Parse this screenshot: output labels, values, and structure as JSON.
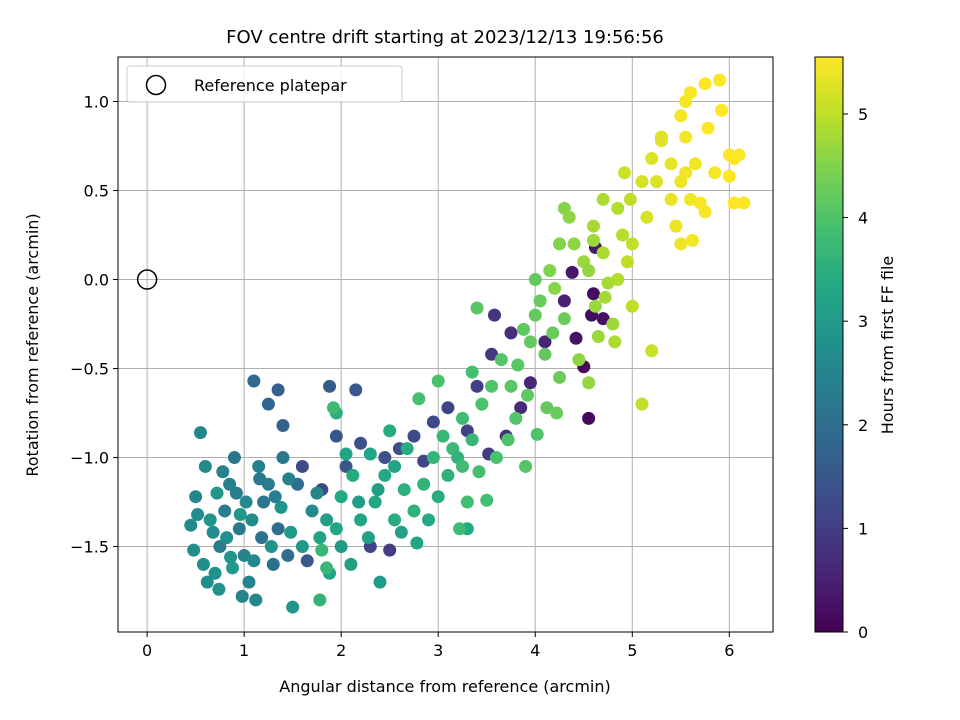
{
  "chart_data": {
    "type": "scatter",
    "title": "FOV centre drift starting at 2023/12/13 19:56:56",
    "xlabel": "Angular distance from reference (arcmin)",
    "ylabel": "Rotation from reference (arcmin)",
    "xlim": [
      -0.3,
      6.45
    ],
    "ylim": [
      -1.98,
      1.25
    ],
    "xticks": [
      0,
      1,
      2,
      3,
      4,
      5,
      6
    ],
    "yticks": [
      -1.5,
      -1.0,
      -0.5,
      0.0,
      0.5,
      1.0
    ],
    "xtick_labels": [
      "0",
      "1",
      "2",
      "3",
      "4",
      "5",
      "6"
    ],
    "ytick_labels": [
      "−1.5",
      "−1.0",
      "−0.5",
      "0.0",
      "0.5",
      "1.0"
    ],
    "grid": true,
    "legend": {
      "location": "upper-left",
      "entries": [
        "Reference platepar"
      ]
    },
    "reference_point": {
      "x": 0.0,
      "y": 0.0
    },
    "colorbar": {
      "label": "Hours from first FF file",
      "colormap": "viridis",
      "min": 0,
      "max": 5.55,
      "ticks": [
        0,
        1,
        2,
        3,
        4,
        5
      ],
      "tick_labels": [
        "0",
        "1",
        "2",
        "3",
        "4",
        "5"
      ]
    },
    "points": [
      {
        "x": 4.55,
        "y": -0.78,
        "c": 0.1
      },
      {
        "x": 4.5,
        "y": -0.49,
        "c": 0.15
      },
      {
        "x": 4.58,
        "y": -0.2,
        "c": 0.2
      },
      {
        "x": 4.7,
        "y": -0.22,
        "c": 0.25
      },
      {
        "x": 4.42,
        "y": -0.33,
        "c": 0.3
      },
      {
        "x": 4.6,
        "y": -0.08,
        "c": 0.2
      },
      {
        "x": 4.38,
        "y": 0.04,
        "c": 0.35
      },
      {
        "x": 4.62,
        "y": 0.18,
        "c": 0.4
      },
      {
        "x": 4.3,
        "y": -0.12,
        "c": 0.5
      },
      {
        "x": 4.1,
        "y": -0.35,
        "c": 0.55
      },
      {
        "x": 3.95,
        "y": -0.58,
        "c": 0.6
      },
      {
        "x": 3.85,
        "y": -0.72,
        "c": 0.7
      },
      {
        "x": 3.7,
        "y": -0.88,
        "c": 0.8
      },
      {
        "x": 3.55,
        "y": -0.42,
        "c": 0.9
      },
      {
        "x": 3.4,
        "y": -0.6,
        "c": 1.0
      },
      {
        "x": 3.3,
        "y": -0.85,
        "c": 1.05
      },
      {
        "x": 3.1,
        "y": -0.72,
        "c": 1.1
      },
      {
        "x": 2.95,
        "y": -0.8,
        "c": 1.2
      },
      {
        "x": 2.75,
        "y": -0.88,
        "c": 1.25
      },
      {
        "x": 2.6,
        "y": -0.95,
        "c": 1.3
      },
      {
        "x": 2.45,
        "y": -1.0,
        "c": 1.35
      },
      {
        "x": 2.2,
        "y": -0.92,
        "c": 1.4
      },
      {
        "x": 2.05,
        "y": -1.05,
        "c": 1.45
      },
      {
        "x": 1.95,
        "y": -0.88,
        "c": 1.5
      },
      {
        "x": 2.15,
        "y": -0.62,
        "c": 1.55
      },
      {
        "x": 1.88,
        "y": -0.6,
        "c": 1.6
      },
      {
        "x": 2.3,
        "y": -1.5,
        "c": 1.1
      },
      {
        "x": 2.5,
        "y": -1.52,
        "c": 1.0
      },
      {
        "x": 1.8,
        "y": -1.18,
        "c": 1.2
      },
      {
        "x": 1.6,
        "y": -1.05,
        "c": 1.25
      },
      {
        "x": 1.65,
        "y": -1.58,
        "c": 1.5
      },
      {
        "x": 1.35,
        "y": -0.62,
        "c": 1.7
      },
      {
        "x": 1.25,
        "y": -0.7,
        "c": 1.8
      },
      {
        "x": 1.1,
        "y": -0.57,
        "c": 1.9
      },
      {
        "x": 1.4,
        "y": -0.82,
        "c": 1.75
      },
      {
        "x": 3.58,
        "y": -0.2,
        "c": 0.85
      },
      {
        "x": 3.75,
        "y": -0.3,
        "c": 0.75
      },
      {
        "x": 3.52,
        "y": -0.98,
        "c": 0.95
      },
      {
        "x": 2.85,
        "y": -1.02,
        "c": 1.15
      },
      {
        "x": 0.5,
        "y": -1.22,
        "c": 2.5
      },
      {
        "x": 0.55,
        "y": -0.86,
        "c": 2.55
      },
      {
        "x": 0.6,
        "y": -1.05,
        "c": 2.6
      },
      {
        "x": 0.45,
        "y": -1.38,
        "c": 2.65
      },
      {
        "x": 0.48,
        "y": -1.52,
        "c": 2.7
      },
      {
        "x": 0.62,
        "y": -1.7,
        "c": 2.75
      },
      {
        "x": 0.7,
        "y": -1.65,
        "c": 2.8
      },
      {
        "x": 0.75,
        "y": -1.5,
        "c": 2.3
      },
      {
        "x": 0.8,
        "y": -1.3,
        "c": 2.35
      },
      {
        "x": 0.85,
        "y": -1.15,
        "c": 2.4
      },
      {
        "x": 0.9,
        "y": -1.0,
        "c": 2.2
      },
      {
        "x": 0.95,
        "y": -1.4,
        "c": 2.25
      },
      {
        "x": 1.0,
        "y": -1.55,
        "c": 2.45
      },
      {
        "x": 1.05,
        "y": -1.7,
        "c": 2.5
      },
      {
        "x": 1.12,
        "y": -1.8,
        "c": 2.55
      },
      {
        "x": 1.18,
        "y": -1.45,
        "c": 2.1
      },
      {
        "x": 1.2,
        "y": -1.25,
        "c": 2.15
      },
      {
        "x": 1.3,
        "y": -1.6,
        "c": 2.05
      },
      {
        "x": 1.35,
        "y": -1.4,
        "c": 2.0
      },
      {
        "x": 1.45,
        "y": -1.55,
        "c": 1.95
      },
      {
        "x": 1.5,
        "y": -1.84,
        "c": 2.9
      },
      {
        "x": 1.55,
        "y": -1.15,
        "c": 2.05
      },
      {
        "x": 1.7,
        "y": -1.3,
        "c": 2.6
      },
      {
        "x": 0.65,
        "y": -1.35,
        "c": 2.85
      },
      {
        "x": 0.72,
        "y": -1.2,
        "c": 2.9
      },
      {
        "x": 0.88,
        "y": -1.62,
        "c": 2.95
      },
      {
        "x": 0.98,
        "y": -1.78,
        "c": 2.5
      },
      {
        "x": 1.08,
        "y": -1.35,
        "c": 2.65
      },
      {
        "x": 1.15,
        "y": -1.05,
        "c": 2.4
      },
      {
        "x": 1.25,
        "y": -1.15,
        "c": 2.3
      },
      {
        "x": 1.4,
        "y": -1.0,
        "c": 2.2
      },
      {
        "x": 0.58,
        "y": -1.6,
        "c": 2.7
      },
      {
        "x": 0.82,
        "y": -1.45,
        "c": 2.75
      },
      {
        "x": 1.02,
        "y": -1.25,
        "c": 2.6
      },
      {
        "x": 1.28,
        "y": -1.5,
        "c": 2.8
      },
      {
        "x": 1.38,
        "y": -1.28,
        "c": 2.85
      },
      {
        "x": 1.48,
        "y": -1.42,
        "c": 3.0
      },
      {
        "x": 1.6,
        "y": -1.5,
        "c": 2.95
      },
      {
        "x": 1.75,
        "y": -1.2,
        "c": 2.55
      },
      {
        "x": 0.78,
        "y": -1.08,
        "c": 2.45
      },
      {
        "x": 0.92,
        "y": -1.2,
        "c": 2.35
      },
      {
        "x": 1.1,
        "y": -1.58,
        "c": 2.6
      },
      {
        "x": 0.68,
        "y": -1.42,
        "c": 2.65
      },
      {
        "x": 0.52,
        "y": -1.32,
        "c": 2.7
      },
      {
        "x": 0.74,
        "y": -1.74,
        "c": 2.8
      },
      {
        "x": 0.86,
        "y": -1.56,
        "c": 2.85
      },
      {
        "x": 0.96,
        "y": -1.32,
        "c": 2.9
      },
      {
        "x": 1.16,
        "y": -1.12,
        "c": 2.25
      },
      {
        "x": 1.32,
        "y": -1.22,
        "c": 2.35
      },
      {
        "x": 1.46,
        "y": -1.12,
        "c": 2.45
      },
      {
        "x": 1.88,
        "y": -1.65,
        "c": 3.2
      },
      {
        "x": 1.95,
        "y": -1.4,
        "c": 3.3
      },
      {
        "x": 2.0,
        "y": -1.22,
        "c": 3.35
      },
      {
        "x": 2.12,
        "y": -1.1,
        "c": 3.4
      },
      {
        "x": 2.2,
        "y": -1.35,
        "c": 3.25
      },
      {
        "x": 2.35,
        "y": -1.25,
        "c": 3.3
      },
      {
        "x": 2.45,
        "y": -1.1,
        "c": 3.35
      },
      {
        "x": 2.55,
        "y": -1.35,
        "c": 3.45
      },
      {
        "x": 2.65,
        "y": -1.18,
        "c": 3.5
      },
      {
        "x": 2.75,
        "y": -1.3,
        "c": 3.55
      },
      {
        "x": 2.85,
        "y": -1.15,
        "c": 3.6
      },
      {
        "x": 2.95,
        "y": -1.0,
        "c": 3.65
      },
      {
        "x": 3.05,
        "y": -0.88,
        "c": 3.7
      },
      {
        "x": 3.15,
        "y": -0.95,
        "c": 3.75
      },
      {
        "x": 3.25,
        "y": -0.78,
        "c": 3.8
      },
      {
        "x": 2.1,
        "y": -1.6,
        "c": 3.1
      },
      {
        "x": 2.28,
        "y": -1.45,
        "c": 3.15
      },
      {
        "x": 2.4,
        "y": -1.7,
        "c": 3.05
      },
      {
        "x": 2.55,
        "y": -1.05,
        "c": 3.2
      },
      {
        "x": 2.05,
        "y": -0.98,
        "c": 3.25
      },
      {
        "x": 2.3,
        "y": -0.98,
        "c": 3.3
      },
      {
        "x": 2.5,
        "y": -0.85,
        "c": 3.4
      },
      {
        "x": 2.68,
        "y": -0.95,
        "c": 3.45
      },
      {
        "x": 1.95,
        "y": -0.75,
        "c": 3.5
      },
      {
        "x": 2.0,
        "y": -1.5,
        "c": 3.0
      },
      {
        "x": 2.62,
        "y": -1.42,
        "c": 3.15
      },
      {
        "x": 2.78,
        "y": -1.48,
        "c": 3.25
      },
      {
        "x": 2.9,
        "y": -1.35,
        "c": 3.35
      },
      {
        "x": 3.0,
        "y": -1.22,
        "c": 3.45
      },
      {
        "x": 3.1,
        "y": -1.1,
        "c": 3.55
      },
      {
        "x": 3.2,
        "y": -1.0,
        "c": 3.6
      },
      {
        "x": 3.3,
        "y": -1.4,
        "c": 3.35
      },
      {
        "x": 3.35,
        "y": -0.9,
        "c": 3.7
      },
      {
        "x": 2.18,
        "y": -1.25,
        "c": 3.05
      },
      {
        "x": 2.38,
        "y": -1.18,
        "c": 3.1
      },
      {
        "x": 1.85,
        "y": -1.35,
        "c": 3.1
      },
      {
        "x": 1.78,
        "y": -1.45,
        "c": 3.2
      },
      {
        "x": 3.35,
        "y": -0.52,
        "c": 3.9
      },
      {
        "x": 3.45,
        "y": -0.7,
        "c": 3.95
      },
      {
        "x": 3.55,
        "y": -0.6,
        "c": 4.0
      },
      {
        "x": 3.65,
        "y": -0.45,
        "c": 4.05
      },
      {
        "x": 3.75,
        "y": -0.6,
        "c": 4.1
      },
      {
        "x": 3.82,
        "y": -0.48,
        "c": 4.1
      },
      {
        "x": 3.88,
        "y": -0.28,
        "c": 4.15
      },
      {
        "x": 3.95,
        "y": -0.35,
        "c": 4.2
      },
      {
        "x": 4.0,
        "y": -0.2,
        "c": 4.2
      },
      {
        "x": 4.05,
        "y": -0.12,
        "c": 4.25
      },
      {
        "x": 4.1,
        "y": -0.42,
        "c": 4.2
      },
      {
        "x": 4.18,
        "y": -0.3,
        "c": 4.25
      },
      {
        "x": 4.25,
        "y": -0.55,
        "c": 4.3
      },
      {
        "x": 4.3,
        "y": -0.22,
        "c": 4.3
      },
      {
        "x": 4.0,
        "y": 0.0,
        "c": 4.2
      },
      {
        "x": 3.92,
        "y": -0.65,
        "c": 4.15
      },
      {
        "x": 3.8,
        "y": -0.78,
        "c": 4.05
      },
      {
        "x": 3.72,
        "y": -0.9,
        "c": 4.0
      },
      {
        "x": 3.6,
        "y": -1.0,
        "c": 3.95
      },
      {
        "x": 3.4,
        "y": -0.16,
        "c": 4.1
      },
      {
        "x": 3.9,
        "y": -1.05,
        "c": 4.05
      },
      {
        "x": 4.02,
        "y": -0.87,
        "c": 4.0
      },
      {
        "x": 4.12,
        "y": -0.72,
        "c": 4.2
      },
      {
        "x": 4.22,
        "y": -0.75,
        "c": 4.25
      },
      {
        "x": 3.3,
        "y": -1.25,
        "c": 3.85
      },
      {
        "x": 3.5,
        "y": -1.24,
        "c": 3.85
      },
      {
        "x": 3.42,
        "y": -1.08,
        "c": 3.9
      },
      {
        "x": 3.25,
        "y": -1.05,
        "c": 3.8
      },
      {
        "x": 2.8,
        "y": -0.67,
        "c": 3.9
      },
      {
        "x": 3.0,
        "y": -0.57,
        "c": 3.95
      },
      {
        "x": 1.92,
        "y": -0.72,
        "c": 3.8
      },
      {
        "x": 1.8,
        "y": -1.52,
        "c": 3.7
      },
      {
        "x": 1.78,
        "y": -1.8,
        "c": 3.6
      },
      {
        "x": 1.85,
        "y": -1.62,
        "c": 3.7
      },
      {
        "x": 3.22,
        "y": -1.4,
        "c": 3.8
      },
      {
        "x": 4.25,
        "y": 0.2,
        "c": 4.5
      },
      {
        "x": 4.3,
        "y": 0.4,
        "c": 4.55
      },
      {
        "x": 4.4,
        "y": 0.2,
        "c": 4.6
      },
      {
        "x": 4.5,
        "y": 0.1,
        "c": 4.7
      },
      {
        "x": 4.6,
        "y": 0.3,
        "c": 4.8
      },
      {
        "x": 4.7,
        "y": 0.15,
        "c": 4.85
      },
      {
        "x": 4.75,
        "y": -0.02,
        "c": 4.8
      },
      {
        "x": 4.8,
        "y": -0.25,
        "c": 4.75
      },
      {
        "x": 4.65,
        "y": -0.32,
        "c": 4.7
      },
      {
        "x": 4.55,
        "y": -0.58,
        "c": 4.65
      },
      {
        "x": 4.45,
        "y": -0.45,
        "c": 4.6
      },
      {
        "x": 4.85,
        "y": 0.4,
        "c": 4.9
      },
      {
        "x": 4.9,
        "y": 0.25,
        "c": 4.95
      },
      {
        "x": 4.95,
        "y": 0.1,
        "c": 5.0
      },
      {
        "x": 5.0,
        "y": 0.2,
        "c": 5.0
      },
      {
        "x": 4.98,
        "y": 0.45,
        "c": 5.0
      },
      {
        "x": 4.92,
        "y": 0.6,
        "c": 5.1
      },
      {
        "x": 5.1,
        "y": -0.7,
        "c": 5.0
      },
      {
        "x": 5.2,
        "y": -0.4,
        "c": 5.1
      },
      {
        "x": 5.0,
        "y": -0.15,
        "c": 5.0
      },
      {
        "x": 4.85,
        "y": 0.0,
        "c": 4.9
      },
      {
        "x": 4.7,
        "y": 0.45,
        "c": 4.85
      },
      {
        "x": 4.6,
        "y": 0.22,
        "c": 4.75
      },
      {
        "x": 4.2,
        "y": -0.05,
        "c": 4.55
      },
      {
        "x": 4.15,
        "y": 0.05,
        "c": 4.5
      },
      {
        "x": 4.35,
        "y": 0.35,
        "c": 4.6
      },
      {
        "x": 4.55,
        "y": 0.05,
        "c": 4.65
      },
      {
        "x": 4.72,
        "y": -0.1,
        "c": 4.8
      },
      {
        "x": 4.82,
        "y": -0.35,
        "c": 4.85
      },
      {
        "x": 4.62,
        "y": -0.15,
        "c": 4.7
      },
      {
        "x": 5.1,
        "y": 0.55,
        "c": 5.2
      },
      {
        "x": 5.2,
        "y": 0.68,
        "c": 5.25
      },
      {
        "x": 5.3,
        "y": 0.78,
        "c": 5.3
      },
      {
        "x": 5.4,
        "y": 0.65,
        "c": 5.35
      },
      {
        "x": 5.5,
        "y": 0.55,
        "c": 5.4
      },
      {
        "x": 5.6,
        "y": 0.45,
        "c": 5.45
      },
      {
        "x": 5.55,
        "y": 0.8,
        "c": 5.45
      },
      {
        "x": 5.5,
        "y": 0.92,
        "c": 5.5
      },
      {
        "x": 5.55,
        "y": 1.0,
        "c": 5.5
      },
      {
        "x": 5.6,
        "y": 1.05,
        "c": 5.5
      },
      {
        "x": 5.75,
        "y": 1.1,
        "c": 5.55
      },
      {
        "x": 5.9,
        "y": 1.12,
        "c": 5.55
      },
      {
        "x": 5.92,
        "y": 0.95,
        "c": 5.55
      },
      {
        "x": 5.78,
        "y": 0.85,
        "c": 5.55
      },
      {
        "x": 6.0,
        "y": 0.7,
        "c": 5.55
      },
      {
        "x": 6.05,
        "y": 0.68,
        "c": 5.55
      },
      {
        "x": 6.1,
        "y": 0.7,
        "c": 5.55
      },
      {
        "x": 6.0,
        "y": 0.58,
        "c": 5.55
      },
      {
        "x": 6.05,
        "y": 0.43,
        "c": 5.55
      },
      {
        "x": 6.15,
        "y": 0.43,
        "c": 5.55
      },
      {
        "x": 5.85,
        "y": 0.6,
        "c": 5.5
      },
      {
        "x": 5.75,
        "y": 0.38,
        "c": 5.5
      },
      {
        "x": 5.62,
        "y": 0.22,
        "c": 5.45
      },
      {
        "x": 5.5,
        "y": 0.2,
        "c": 5.4
      },
      {
        "x": 5.4,
        "y": 0.45,
        "c": 5.35
      },
      {
        "x": 5.3,
        "y": 0.8,
        "c": 5.3
      },
      {
        "x": 5.25,
        "y": 0.55,
        "c": 5.25
      },
      {
        "x": 5.15,
        "y": 0.35,
        "c": 5.2
      },
      {
        "x": 5.65,
        "y": 0.65,
        "c": 5.45
      },
      {
        "x": 5.7,
        "y": 0.43,
        "c": 5.5
      },
      {
        "x": 5.55,
        "y": 0.6,
        "c": 5.45
      },
      {
        "x": 5.45,
        "y": 0.3,
        "c": 5.4
      }
    ]
  }
}
